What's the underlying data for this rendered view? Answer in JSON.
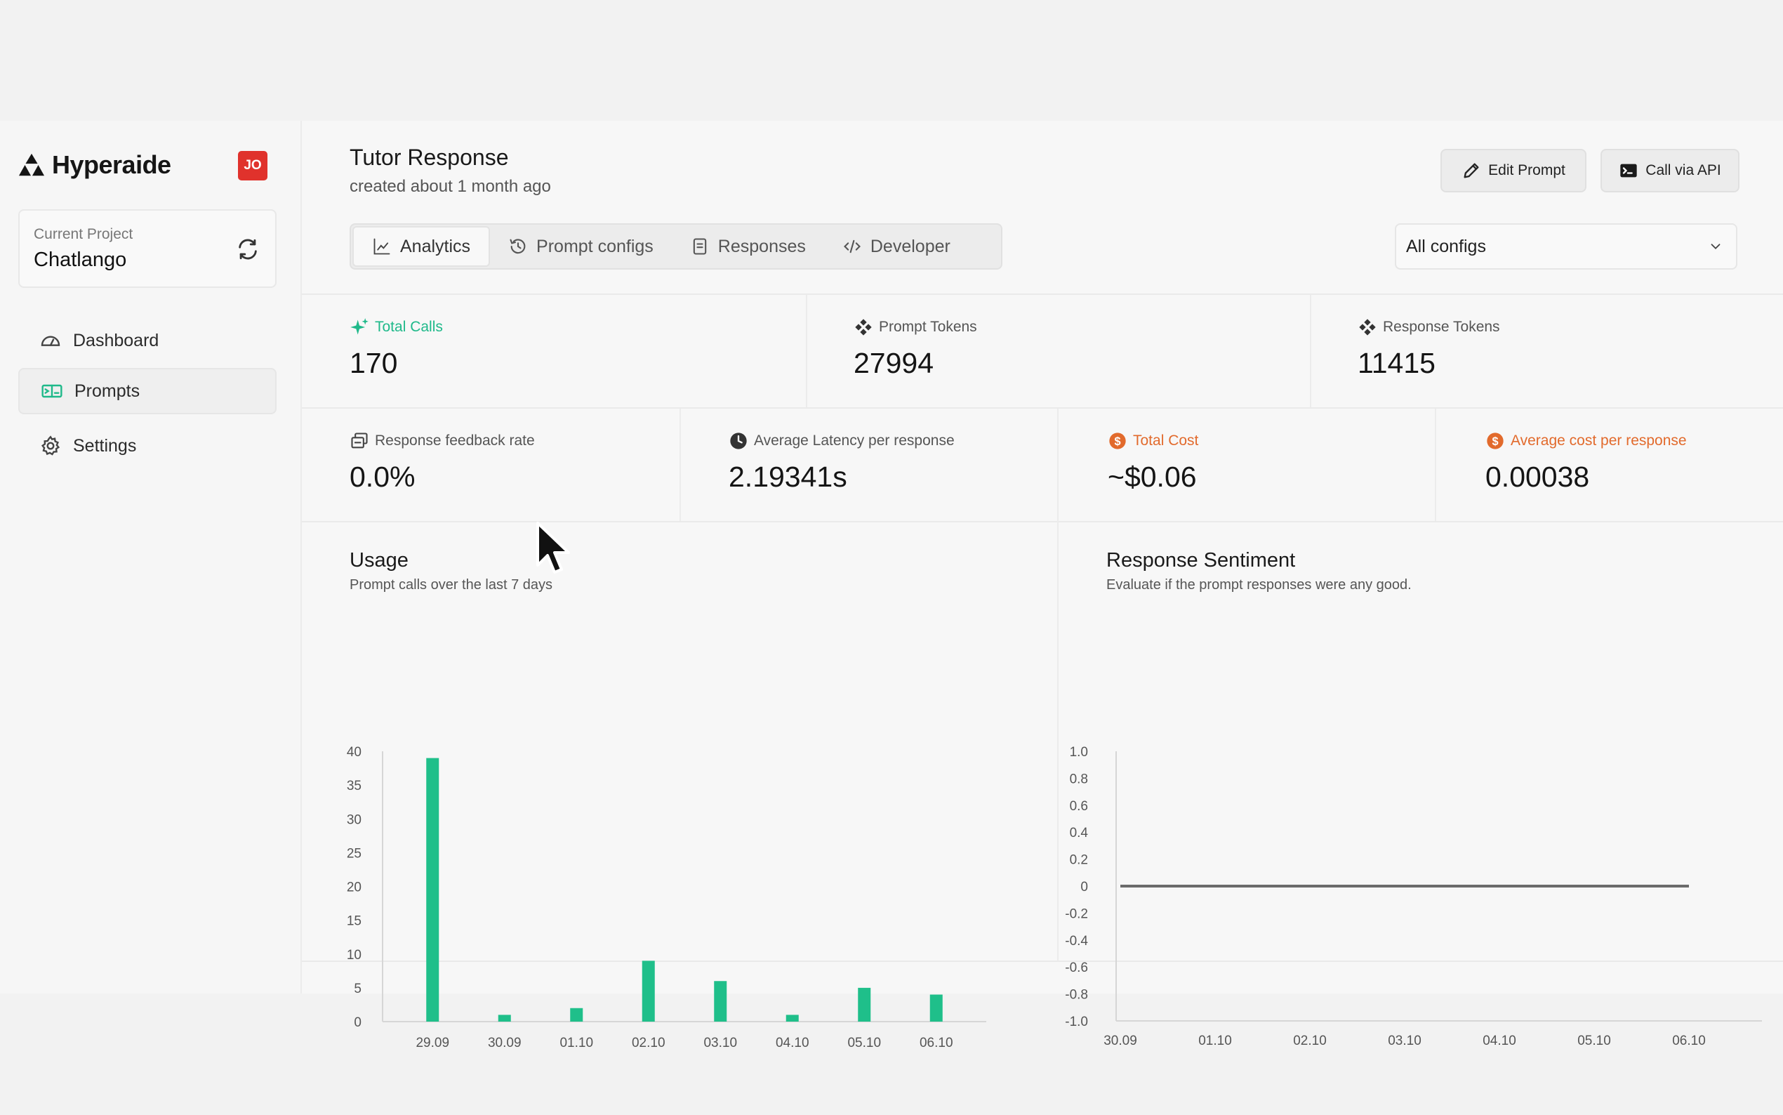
{
  "brand": {
    "name": "Hyperaide",
    "avatar_initials": "JO"
  },
  "project": {
    "label": "Current Project",
    "name": "Chatlango"
  },
  "nav": [
    {
      "label": "Dashboard",
      "icon": "dashboard-icon",
      "active": false
    },
    {
      "label": "Prompts",
      "icon": "prompts-icon",
      "active": true
    },
    {
      "label": "Settings",
      "icon": "gear-icon",
      "active": false
    }
  ],
  "header": {
    "title": "Tutor Response",
    "subtitle": "created about 1 month ago",
    "edit_label": "Edit Prompt",
    "api_label": "Call via API"
  },
  "tabs": [
    {
      "label": "Analytics",
      "icon": "chart-icon",
      "active": true
    },
    {
      "label": "Prompt configs",
      "icon": "history-icon",
      "active": false
    },
    {
      "label": "Responses",
      "icon": "document-icon",
      "active": false
    },
    {
      "label": "Developer",
      "icon": "code-icon",
      "active": false
    }
  ],
  "config_select": {
    "value": "All configs"
  },
  "stats_row1": [
    {
      "label": "Total Calls",
      "value": "170",
      "accent": "#1fb98a"
    },
    {
      "label": "Prompt Tokens",
      "value": "27994"
    },
    {
      "label": "Response Tokens",
      "value": "11415"
    }
  ],
  "stats_row2": [
    {
      "label": "Response feedback rate",
      "value": "0.0%"
    },
    {
      "label": "Average Latency per response",
      "value": "2.19341s"
    },
    {
      "label": "Total Cost",
      "value": "~$0.06",
      "accent": "#e26a2c"
    },
    {
      "label": "Average cost per response",
      "value": "0.00038",
      "accent": "#e26a2c"
    }
  ],
  "usage": {
    "title": "Usage",
    "subtitle": "Prompt calls over the last 7 days"
  },
  "sentiment": {
    "title": "Response Sentiment",
    "subtitle": "Evaluate if the prompt responses were any good."
  },
  "colors": {
    "bar": "#1fbf8a",
    "line": "#6b6b6b",
    "avatar": "#e0322c"
  },
  "chart_data": [
    {
      "type": "bar",
      "title": "Usage",
      "subtitle": "Prompt calls over the last 7 days",
      "categories": [
        "29.09",
        "30.09",
        "01.10",
        "02.10",
        "03.10",
        "04.10",
        "05.10",
        "06.10"
      ],
      "values": [
        39,
        1,
        2,
        9,
        6,
        1,
        5,
        4
      ],
      "ylim": [
        0,
        40
      ],
      "yticks": [
        0,
        5,
        10,
        15,
        20,
        25,
        30,
        35,
        40
      ],
      "grid": false
    },
    {
      "type": "line",
      "title": "Response Sentiment",
      "subtitle": "Evaluate if the prompt responses were any good.",
      "x": [
        "30.09",
        "01.10",
        "02.10",
        "03.10",
        "04.10",
        "05.10",
        "06.10"
      ],
      "values": [
        0,
        0,
        0,
        0,
        0,
        0,
        0
      ],
      "ylim": [
        -1.0,
        1.0
      ],
      "yticks": [
        "1.0",
        "0.8",
        "0.6",
        "0.4",
        "0.2",
        "0",
        "-0.2",
        "-0.4",
        "-0.6",
        "-0.8",
        "-1.0"
      ],
      "grid": false
    }
  ]
}
